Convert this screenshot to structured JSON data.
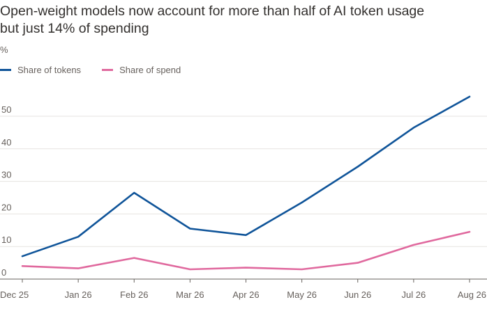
{
  "chart_data": {
    "type": "line",
    "title_lines": [
      "Open-weight models now account for more than half of AI token usage",
      "but just 14% of spending"
    ],
    "ylabel": "%",
    "categories": [
      "Dec 25",
      "Jan 26",
      "Feb 26",
      "Mar 26",
      "Apr 26",
      "May 26",
      "Jun 26",
      "Jul 26",
      "Aug 26"
    ],
    "ylim": [
      0,
      58
    ],
    "yticks": [
      0,
      10,
      20,
      30,
      40,
      50
    ],
    "grid": true,
    "legend_placement": "top-left",
    "series": [
      {
        "name": "Share of tokens",
        "color": "#0f5499",
        "values": [
          7,
          13,
          26.5,
          15.5,
          13.5,
          23.5,
          34.5,
          46.5,
          56
        ]
      },
      {
        "name": "Share of spend",
        "color": "#e0699e",
        "values": [
          4,
          3.3,
          6.5,
          3,
          3.5,
          3,
          5,
          10.5,
          14.5
        ]
      }
    ]
  }
}
